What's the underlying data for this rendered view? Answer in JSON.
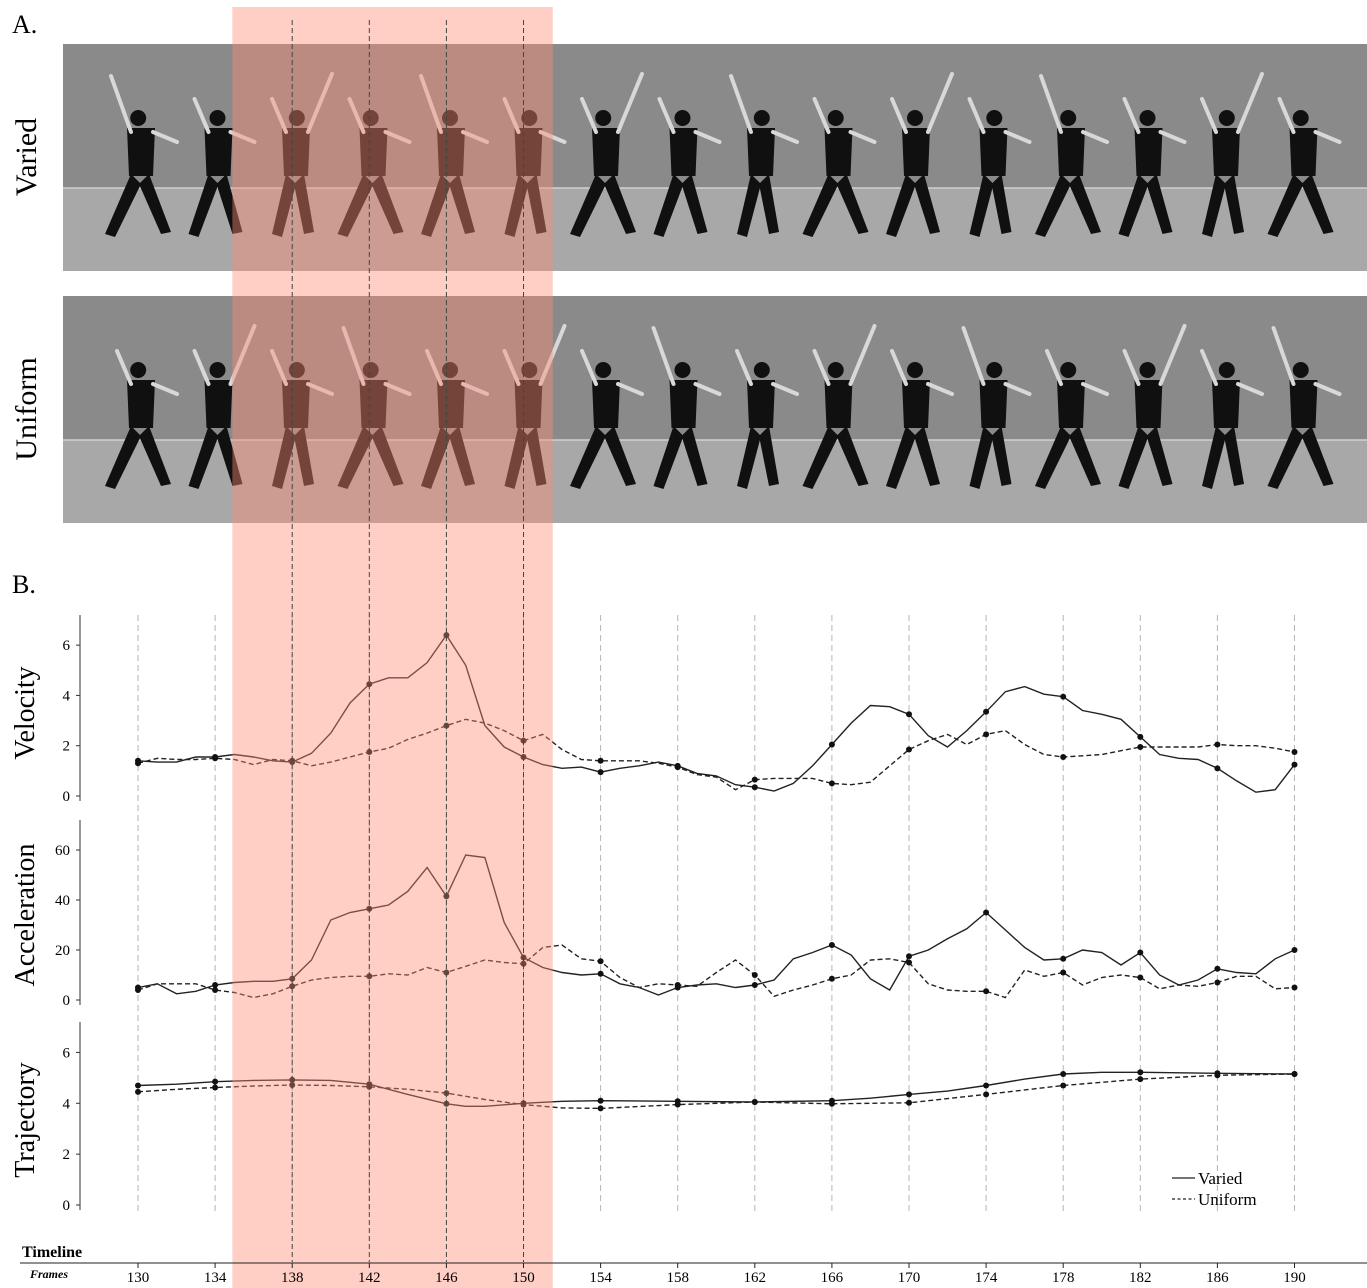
{
  "panel_a": {
    "label": "A.",
    "rows": [
      {
        "name": "Varied"
      },
      {
        "name": "Uniform"
      }
    ]
  },
  "panel_b": {
    "label": "B."
  },
  "timeline": {
    "title": "Timeline",
    "frames_label": "Frames",
    "ticks": [
      130,
      134,
      138,
      142,
      146,
      150,
      154,
      158,
      162,
      166,
      170,
      174,
      178,
      182,
      186,
      190
    ],
    "highlight_range": [
      135,
      151
    ]
  },
  "colors": {
    "highlight": "#ff8c78",
    "strip_dark": "#8a8a8a",
    "strip_light": "#a8a8a8",
    "dancer": "#101010",
    "line": "#222222"
  },
  "legend": {
    "position": "bottom-right",
    "items": [
      {
        "name": "Varied",
        "style": "solid"
      },
      {
        "name": "Uniform",
        "style": "dashed"
      }
    ]
  },
  "chart_data": [
    {
      "type": "line",
      "ylabel": "Velocity",
      "ylim": [
        0,
        7
      ],
      "yticks": [
        0,
        2,
        4,
        6
      ],
      "series": [
        {
          "name": "Varied",
          "style": "solid",
          "x": [
            130,
            131,
            132,
            133,
            134,
            135,
            136,
            137,
            138,
            139,
            140,
            141,
            142,
            143,
            144,
            145,
            146,
            147,
            148,
            149,
            150,
            151,
            152,
            153,
            154,
            155,
            156,
            157,
            158,
            159,
            160,
            161,
            162,
            163,
            164,
            165,
            166,
            167,
            168,
            169,
            170,
            171,
            172,
            173,
            174,
            175,
            176,
            177,
            178,
            179,
            180,
            181,
            182,
            183,
            184,
            185,
            186,
            187,
            188,
            189,
            190
          ],
          "y": [
            1.4,
            1.35,
            1.35,
            1.55,
            1.55,
            1.65,
            1.55,
            1.4,
            1.35,
            1.7,
            2.5,
            3.7,
            4.45,
            4.7,
            4.7,
            5.3,
            6.4,
            5.2,
            2.8,
            1.95,
            1.55,
            1.25,
            1.1,
            1.15,
            0.95,
            1.1,
            1.2,
            1.35,
            1.2,
            0.9,
            0.8,
            0.45,
            0.35,
            0.2,
            0.5,
            1.2,
            2.05,
            2.9,
            3.6,
            3.55,
            3.25,
            2.4,
            1.95,
            2.6,
            3.35,
            4.15,
            4.35,
            4.05,
            3.95,
            3.4,
            3.25,
            3.05,
            2.35,
            1.65,
            1.5,
            1.45,
            1.1,
            0.6,
            0.15,
            0.25,
            1.25
          ],
          "markers_x": [
            130,
            134,
            138,
            142,
            146,
            150,
            154,
            158,
            162,
            166,
            170,
            174,
            178,
            182,
            186,
            190
          ]
        },
        {
          "name": "Uniform",
          "style": "dashed",
          "x": [
            130,
            131,
            132,
            133,
            134,
            135,
            136,
            137,
            138,
            139,
            140,
            141,
            142,
            143,
            144,
            145,
            146,
            147,
            148,
            149,
            150,
            151,
            152,
            153,
            154,
            155,
            156,
            157,
            158,
            159,
            160,
            161,
            162,
            163,
            164,
            165,
            166,
            167,
            168,
            169,
            170,
            171,
            172,
            173,
            174,
            175,
            176,
            177,
            178,
            179,
            180,
            181,
            182,
            183,
            184,
            185,
            186,
            187,
            188,
            189,
            190
          ],
          "y": [
            1.3,
            1.5,
            1.45,
            1.45,
            1.5,
            1.45,
            1.25,
            1.45,
            1.4,
            1.2,
            1.35,
            1.55,
            1.75,
            1.9,
            2.25,
            2.5,
            2.8,
            3.05,
            2.9,
            2.6,
            2.2,
            2.45,
            1.85,
            1.45,
            1.4,
            1.4,
            1.4,
            1.3,
            1.15,
            0.85,
            0.75,
            0.25,
            0.65,
            0.7,
            0.7,
            0.7,
            0.5,
            0.45,
            0.55,
            1.2,
            1.85,
            2.2,
            2.45,
            2.05,
            2.45,
            2.6,
            2.05,
            1.65,
            1.55,
            1.6,
            1.65,
            1.8,
            1.95,
            1.95,
            1.95,
            1.95,
            2.05,
            2.0,
            2.0,
            1.9,
            1.75
          ],
          "markers_x": [
            130,
            134,
            138,
            142,
            146,
            150,
            154,
            158,
            162,
            166,
            170,
            174,
            178,
            182,
            186,
            190
          ]
        }
      ]
    },
    {
      "type": "line",
      "ylabel": "Acceleration",
      "ylim": [
        0,
        70
      ],
      "yticks": [
        0,
        20,
        40,
        60
      ],
      "series": [
        {
          "name": "Varied",
          "style": "solid",
          "x": [
            130,
            131,
            132,
            133,
            134,
            135,
            136,
            137,
            138,
            139,
            140,
            141,
            142,
            143,
            144,
            145,
            146,
            147,
            148,
            149,
            150,
            151,
            152,
            153,
            154,
            155,
            156,
            157,
            158,
            159,
            160,
            161,
            162,
            163,
            164,
            165,
            166,
            167,
            168,
            169,
            170,
            171,
            172,
            173,
            174,
            175,
            176,
            177,
            178,
            179,
            180,
            181,
            182,
            183,
            184,
            185,
            186,
            187,
            188,
            189,
            190
          ],
          "y": [
            5,
            6.5,
            2.5,
            3.5,
            6,
            7,
            7.5,
            7.5,
            8.5,
            16,
            32,
            35,
            36.5,
            38,
            43.5,
            53,
            41.5,
            58,
            57,
            31,
            17,
            13,
            11,
            10,
            10.5,
            6.5,
            5,
            2,
            5,
            6,
            6.5,
            5,
            6,
            8,
            16.5,
            19,
            22,
            18,
            8.5,
            4,
            17.5,
            20,
            24.5,
            28.5,
            35,
            28,
            21,
            16,
            16.5,
            20,
            19,
            14,
            19,
            10,
            6,
            8,
            12.5,
            11,
            10.5,
            16.5,
            20
          ],
          "markers_x": [
            130,
            134,
            138,
            142,
            146,
            150,
            154,
            158,
            162,
            166,
            170,
            174,
            178,
            182,
            186,
            190
          ]
        },
        {
          "name": "Uniform",
          "style": "dashed",
          "x": [
            130,
            131,
            132,
            133,
            134,
            135,
            136,
            137,
            138,
            139,
            140,
            141,
            142,
            143,
            144,
            145,
            146,
            147,
            148,
            149,
            150,
            151,
            152,
            153,
            154,
            155,
            156,
            157,
            158,
            159,
            160,
            161,
            162,
            163,
            164,
            165,
            166,
            167,
            168,
            169,
            170,
            171,
            172,
            173,
            174,
            175,
            176,
            177,
            178,
            179,
            180,
            181,
            182,
            183,
            184,
            185,
            186,
            187,
            188,
            189,
            190
          ],
          "y": [
            4,
            6.5,
            6.5,
            6.5,
            4,
            3,
            1,
            2.5,
            5.5,
            8,
            9,
            9.5,
            9.5,
            10.5,
            10,
            13,
            11,
            13.5,
            16,
            15,
            14.5,
            21,
            22,
            16.5,
            15.5,
            9,
            5,
            6.5,
            6,
            5.5,
            11,
            16,
            10,
            1.5,
            4,
            6,
            8.5,
            10,
            16,
            16.5,
            15,
            6.5,
            4,
            3.5,
            3.5,
            1,
            12,
            9.5,
            11,
            6,
            9,
            10,
            9,
            4.5,
            6,
            5.5,
            7,
            9.5,
            9.5,
            4.5,
            5
          ],
          "markers_x": [
            130,
            134,
            138,
            142,
            146,
            150,
            154,
            158,
            162,
            166,
            170,
            174,
            178,
            182,
            186,
            190
          ]
        }
      ]
    },
    {
      "type": "line",
      "ylabel": "Trajectory",
      "ylim": [
        0,
        7
      ],
      "yticks": [
        0,
        2,
        4,
        6
      ],
      "series": [
        {
          "name": "Varied",
          "style": "solid",
          "x": [
            130,
            132,
            134,
            136,
            138,
            140,
            142,
            144,
            146,
            147,
            148,
            150,
            152,
            154,
            158,
            162,
            166,
            168,
            170,
            172,
            174,
            176,
            178,
            180,
            182,
            186,
            190
          ],
          "y": [
            4.7,
            4.75,
            4.85,
            4.9,
            4.92,
            4.9,
            4.75,
            4.35,
            3.98,
            3.88,
            3.88,
            4.0,
            4.08,
            4.1,
            4.08,
            4.05,
            4.1,
            4.2,
            4.35,
            4.48,
            4.7,
            4.95,
            5.15,
            5.22,
            5.22,
            5.18,
            5.15
          ],
          "markers_x": [
            130,
            134,
            138,
            142,
            146,
            150,
            154,
            158,
            162,
            166,
            170,
            174,
            178,
            182,
            186,
            190
          ]
        },
        {
          "name": "Uniform",
          "style": "dashed",
          "x": [
            130,
            132,
            134,
            136,
            138,
            140,
            142,
            144,
            146,
            148,
            150,
            152,
            154,
            158,
            162,
            166,
            170,
            174,
            178,
            182,
            186,
            190
          ],
          "y": [
            4.45,
            4.55,
            4.62,
            4.68,
            4.72,
            4.7,
            4.65,
            4.55,
            4.4,
            4.15,
            3.95,
            3.82,
            3.8,
            3.95,
            4.05,
            3.98,
            4.02,
            4.35,
            4.7,
            4.95,
            5.1,
            5.15
          ],
          "markers_x": [
            130,
            134,
            138,
            142,
            146,
            150,
            154,
            158,
            162,
            166,
            170,
            174,
            178,
            182,
            186,
            190
          ]
        }
      ]
    }
  ]
}
